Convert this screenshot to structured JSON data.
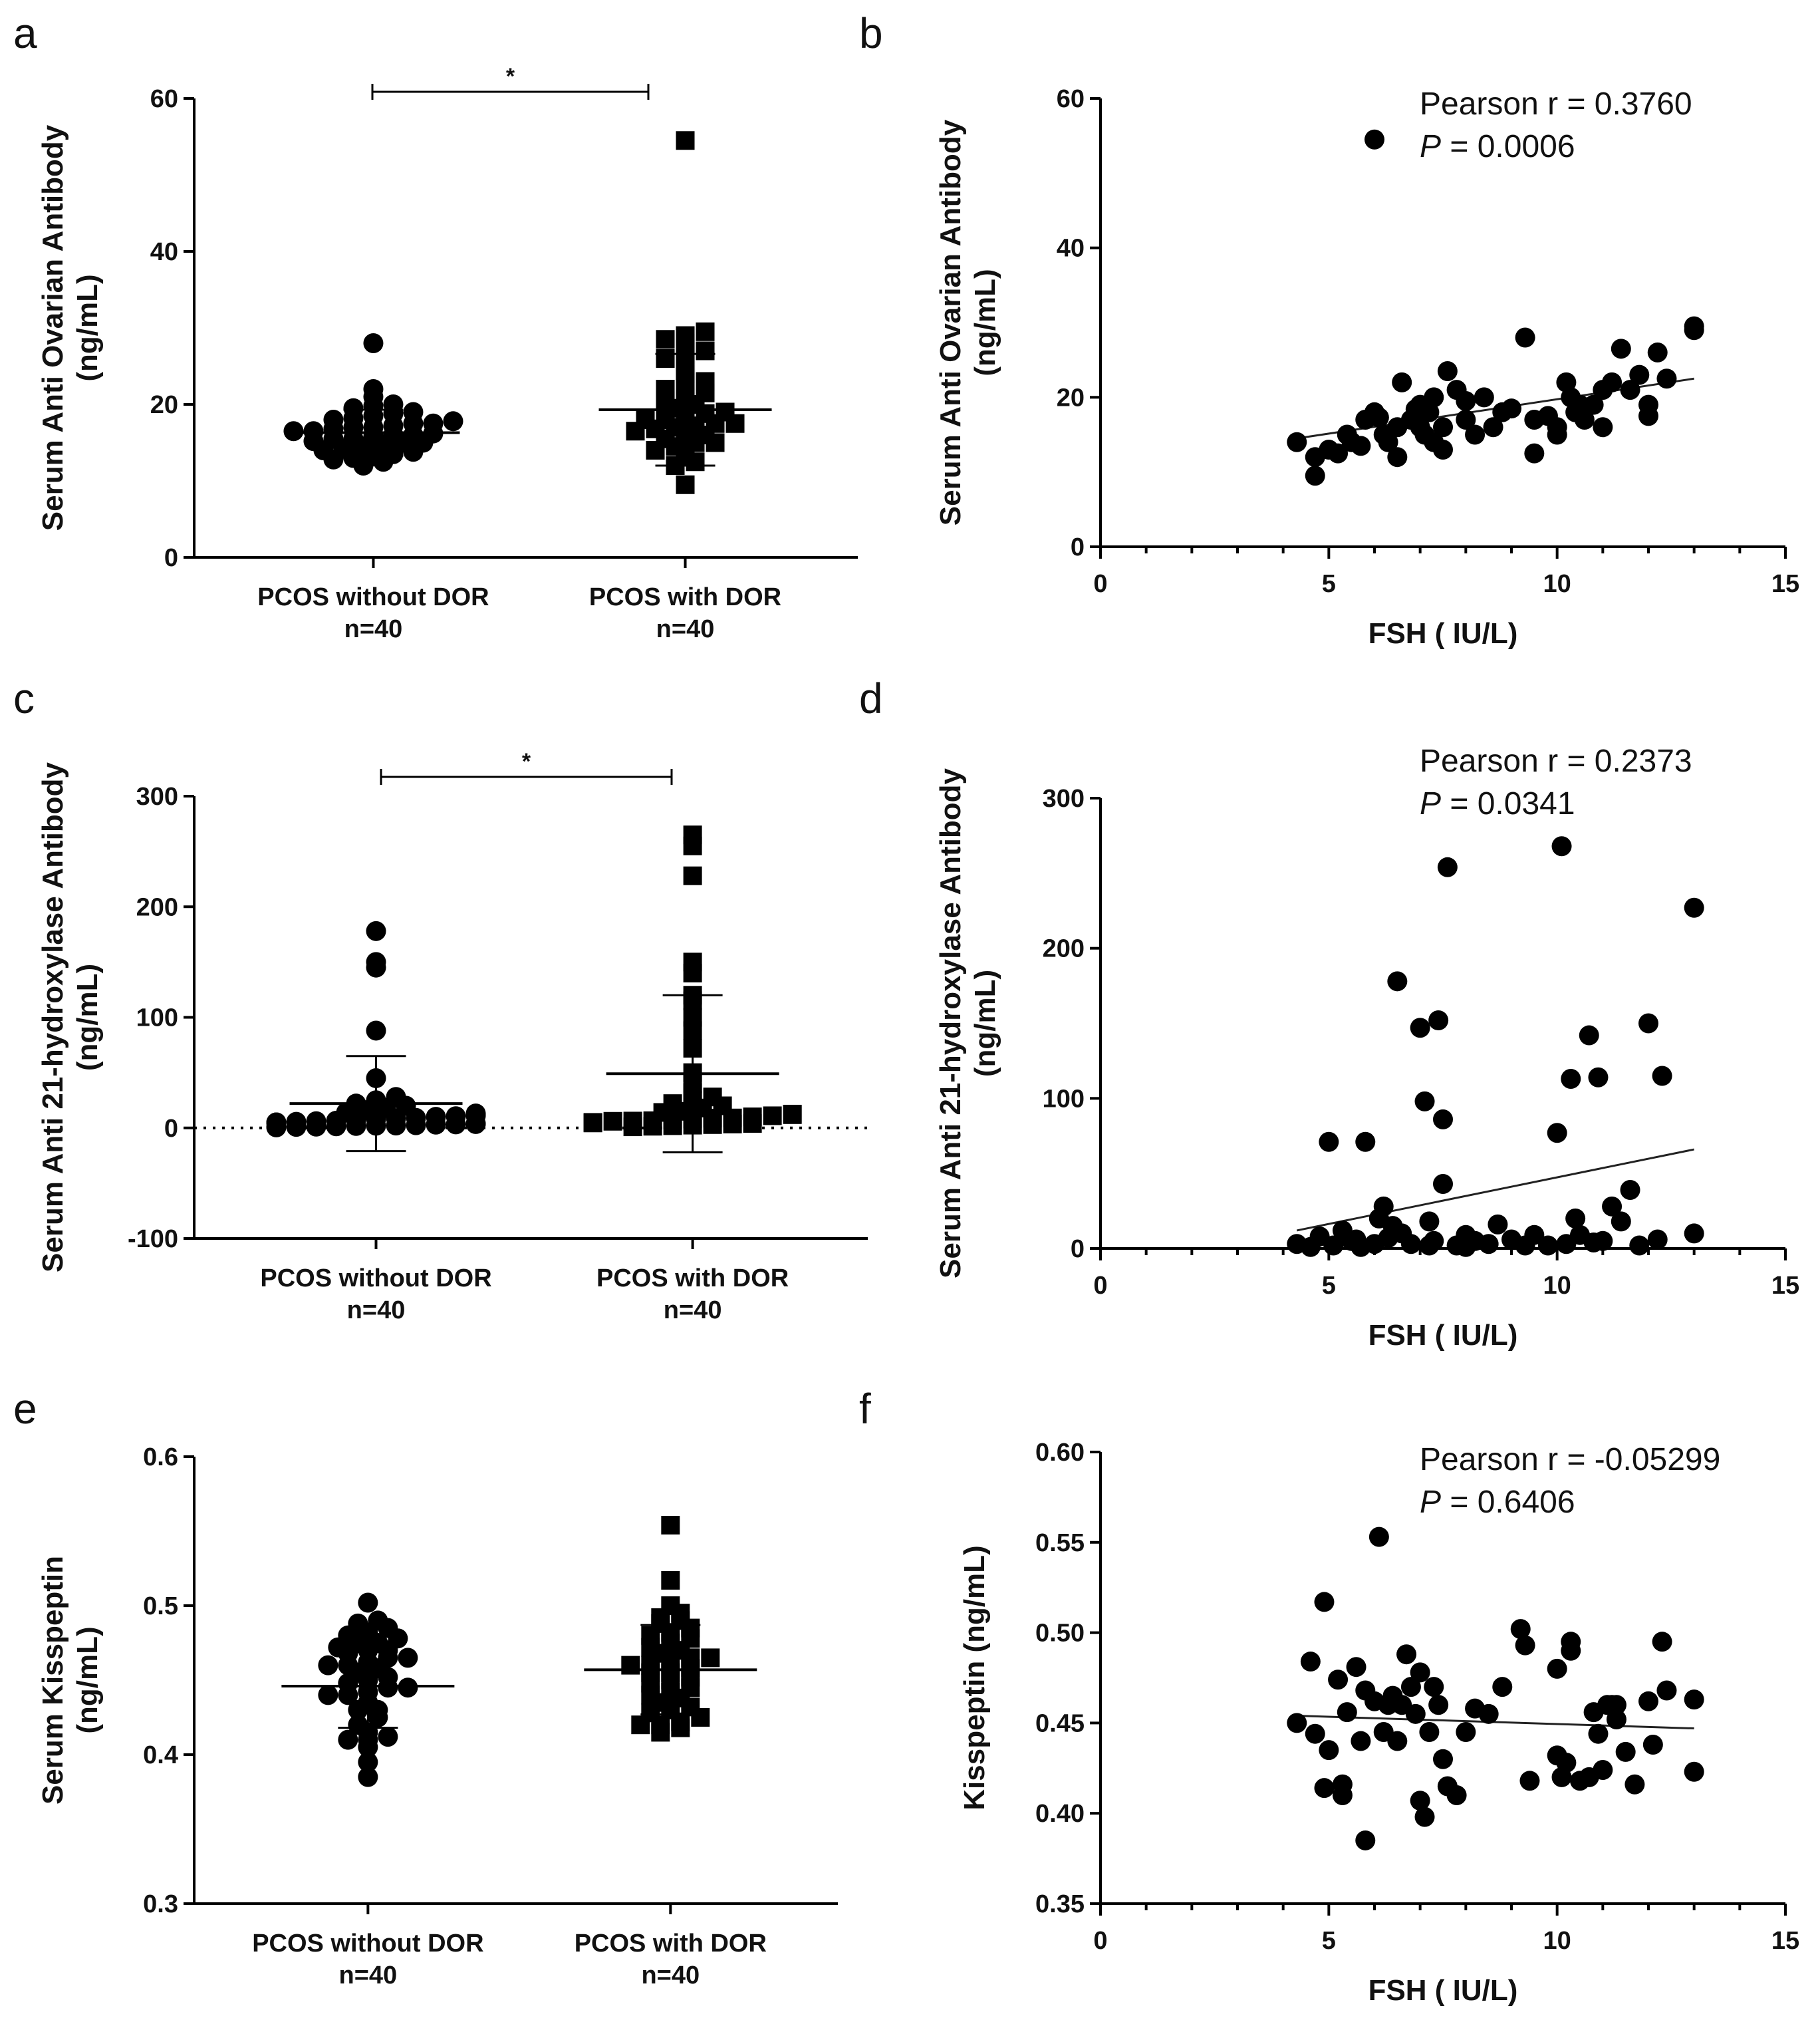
{
  "figure": {
    "panels": [
      {
        "id": "a",
        "letter": "a"
      },
      {
        "id": "b",
        "letter": "b"
      },
      {
        "id": "c",
        "letter": "c"
      },
      {
        "id": "d",
        "letter": "d"
      },
      {
        "id": "e",
        "letter": "e"
      },
      {
        "id": "f",
        "letter": "f"
      }
    ]
  },
  "chart_data": [
    {
      "panel": "a",
      "type": "scatter",
      "subtype": "dot-plot",
      "ylabel": [
        "Serum Anti Ovarian Antibody",
        "(ng/mL)"
      ],
      "ylim": [
        0,
        60
      ],
      "yticks": [
        0,
        20,
        40,
        60
      ],
      "categories": [
        {
          "label": "PCOS without DOR",
          "n": "n=40",
          "marker": "circle",
          "values": [
            12,
            12.5,
            12.8,
            13,
            13.2,
            13.5,
            13.8,
            14,
            14.2,
            14.5,
            14.8,
            15,
            15,
            15.2,
            15.5,
            15.5,
            15.8,
            16,
            16,
            16.2,
            16.5,
            16.5,
            16.8,
            17,
            17,
            17.2,
            17.5,
            17.5,
            17.8,
            18,
            18.2,
            18.5,
            18.8,
            19,
            19.5,
            19.8,
            20,
            21,
            22,
            28
          ],
          "mean": 16.3,
          "sd": 3.0
        },
        {
          "label": "PCOS with DOR",
          "n": "n=40",
          "marker": "square",
          "values": [
            9.5,
            12,
            12.5,
            13.5,
            14,
            14.5,
            15,
            15,
            15.5,
            15.8,
            16,
            16.5,
            16.8,
            17,
            17.5,
            17.5,
            18,
            18,
            18.5,
            18.8,
            19,
            19.5,
            20,
            20.5,
            21,
            21.5,
            22,
            22.5,
            23,
            24,
            25,
            26,
            26.5,
            27,
            28,
            28.5,
            29,
            29.5,
            17.2,
            54.5
          ],
          "mean": 19.3,
          "sd": 7.3
        }
      ],
      "significance": "*"
    },
    {
      "panel": "b",
      "type": "scatter",
      "xlabel": "FSH ( IU/L)",
      "ylabel": [
        "Serum Anti Ovarian Antibody",
        "(ng/mL)"
      ],
      "xlim": [
        0,
        15
      ],
      "ylim": [
        0,
        60
      ],
      "xticks": [
        0,
        5,
        10,
        15
      ],
      "yticks": [
        0,
        20,
        40,
        60
      ],
      "stats": {
        "r_label": "Pearson r = 0.3760",
        "p_italic": "P",
        "p_rest": " = 0.0006"
      },
      "fit": {
        "x": [
          4.3,
          13.0
        ],
        "y": [
          14.5,
          22.5
        ]
      },
      "points": [
        [
          6.0,
          54.5
        ],
        [
          4.3,
          14
        ],
        [
          4.7,
          12
        ],
        [
          4.7,
          9.5
        ],
        [
          5.0,
          13
        ],
        [
          5.2,
          12.5
        ],
        [
          5.4,
          15
        ],
        [
          5.5,
          14
        ],
        [
          5.7,
          13.5
        ],
        [
          5.8,
          17
        ],
        [
          6.0,
          18
        ],
        [
          6.2,
          15
        ],
        [
          6.3,
          14
        ],
        [
          6.5,
          16
        ],
        [
          6.5,
          12
        ],
        [
          6.6,
          22
        ],
        [
          6.8,
          17
        ],
        [
          7.0,
          16
        ],
        [
          7.0,
          19
        ],
        [
          7.1,
          15
        ],
        [
          7.2,
          18
        ],
        [
          7.3,
          20
        ],
        [
          7.3,
          14
        ],
        [
          7.5,
          16
        ],
        [
          7.5,
          13
        ],
        [
          7.6,
          23.5
        ],
        [
          7.8,
          21
        ],
        [
          8.0,
          17
        ],
        [
          8.0,
          19.5
        ],
        [
          8.2,
          15
        ],
        [
          8.4,
          20
        ],
        [
          8.6,
          16
        ],
        [
          8.8,
          18
        ],
        [
          9.0,
          18.5
        ],
        [
          9.3,
          28
        ],
        [
          9.5,
          17
        ],
        [
          9.5,
          12.5
        ],
        [
          10.0,
          16
        ],
        [
          10.0,
          15
        ],
        [
          10.2,
          22
        ],
        [
          10.3,
          20
        ],
        [
          10.4,
          18
        ],
        [
          10.6,
          17
        ],
        [
          10.8,
          19
        ],
        [
          11.0,
          16
        ],
        [
          11.0,
          21
        ],
        [
          11.2,
          22
        ],
        [
          11.4,
          26.5
        ],
        [
          11.6,
          21
        ],
        [
          11.8,
          23
        ],
        [
          12.0,
          19
        ],
        [
          12.0,
          17.5
        ],
        [
          12.2,
          26
        ],
        [
          12.4,
          22.5
        ],
        [
          13.0,
          29
        ],
        [
          13.0,
          29.5
        ],
        [
          9.8,
          17.5
        ],
        [
          10.5,
          19
        ],
        [
          6.1,
          17.3
        ],
        [
          6.9,
          18.4
        ]
      ]
    },
    {
      "panel": "c",
      "type": "scatter",
      "subtype": "dot-plot",
      "ylabel": [
        "Serum Anti 21-hydroxylase Antibody",
        "(ng/mL)"
      ],
      "ylim": [
        -100,
        300
      ],
      "yticks": [
        -100,
        0,
        100,
        200,
        300
      ],
      "categories": [
        {
          "label": "PCOS without DOR",
          "n": "n=40",
          "marker": "circle",
          "values": [
            0.5,
            0.8,
            1,
            1.2,
            1.5,
            1.8,
            2,
            2.2,
            2.5,
            3,
            3.2,
            3.5,
            4,
            4.5,
            5,
            5,
            5.5,
            6,
            6.5,
            7,
            8,
            8.5,
            9,
            10,
            10.5,
            11,
            12,
            13,
            14,
            16,
            18,
            20,
            22,
            25,
            28,
            45,
            88,
            145,
            150,
            178
          ],
          "mean": 22,
          "sd": 43
        },
        {
          "label": "PCOS with DOR",
          "n": "n=40",
          "marker": "square",
          "values": [
            1,
            1.5,
            2,
            2.5,
            3,
            3.5,
            4,
            4.5,
            5,
            6,
            6.5,
            7,
            8,
            9,
            10,
            11,
            12,
            14,
            15,
            18,
            20,
            22,
            25,
            28,
            32,
            40,
            50,
            72,
            88,
            100,
            115,
            120,
            140,
            150,
            228,
            255,
            265,
            6.2,
            8.8,
            12.5
          ],
          "mean": 49,
          "sd": 71
        },
        {
          "_comment": "zero reference line dotted"
        }
      ],
      "significance": "*"
    },
    {
      "panel": "d",
      "type": "scatter",
      "xlabel": "FSH ( IU/L)",
      "ylabel": [
        "Serum Anti 21-hydroxylase Antibody",
        "(ng/mL)"
      ],
      "xlim": [
        0,
        15
      ],
      "ylim": [
        0,
        300
      ],
      "xticks": [
        0,
        5,
        10,
        15
      ],
      "yticks": [
        0,
        100,
        200,
        300
      ],
      "stats": {
        "r_label": "Pearson r = 0.2373",
        "p_italic": "P",
        "p_rest": " = 0.0341"
      },
      "fit": {
        "x": [
          4.3,
          13.0
        ],
        "y": [
          12,
          66
        ]
      },
      "points": [
        [
          4.3,
          3
        ],
        [
          4.6,
          1
        ],
        [
          4.8,
          8
        ],
        [
          5.0,
          71
        ],
        [
          5.1,
          2
        ],
        [
          5.3,
          12
        ],
        [
          5.5,
          5
        ],
        [
          5.7,
          1
        ],
        [
          5.8,
          71
        ],
        [
          6.0,
          3
        ],
        [
          6.1,
          20
        ],
        [
          6.2,
          28
        ],
        [
          6.3,
          7
        ],
        [
          6.5,
          178
        ],
        [
          6.6,
          10
        ],
        [
          6.8,
          3
        ],
        [
          7.0,
          147
        ],
        [
          7.1,
          98
        ],
        [
          7.2,
          18
        ],
        [
          7.3,
          5
        ],
        [
          7.4,
          152
        ],
        [
          7.5,
          43
        ],
        [
          7.5,
          86
        ],
        [
          7.6,
          254
        ],
        [
          7.8,
          2
        ],
        [
          8.0,
          9
        ],
        [
          8.2,
          5
        ],
        [
          8.5,
          3
        ],
        [
          8.7,
          16
        ],
        [
          9.0,
          6
        ],
        [
          9.3,
          2
        ],
        [
          9.5,
          9
        ],
        [
          10.0,
          77
        ],
        [
          10.1,
          268
        ],
        [
          10.2,
          3
        ],
        [
          10.3,
          113
        ],
        [
          10.4,
          20
        ],
        [
          10.5,
          9
        ],
        [
          10.7,
          142
        ],
        [
          10.9,
          114
        ],
        [
          11.0,
          5
        ],
        [
          11.2,
          28
        ],
        [
          11.4,
          18
        ],
        [
          11.6,
          39
        ],
        [
          11.8,
          2
        ],
        [
          12.0,
          150
        ],
        [
          12.2,
          6
        ],
        [
          12.3,
          115
        ],
        [
          13.0,
          227
        ],
        [
          13.0,
          10
        ],
        [
          8.0,
          1
        ],
        [
          9.8,
          2
        ],
        [
          10.8,
          4
        ],
        [
          7.2,
          2
        ],
        [
          6.4,
          15
        ],
        [
          5.6,
          6
        ]
      ]
    },
    {
      "panel": "e",
      "type": "scatter",
      "subtype": "dot-plot",
      "ylabel": [
        "Serum Kisspeptin",
        "(ng/mL)"
      ],
      "ylim": [
        0.3,
        0.6
      ],
      "yticks": [
        "0.3",
        "0.4",
        "0.5",
        "0.6"
      ],
      "yticks_values": [
        0.3,
        0.4,
        0.5,
        0.6
      ],
      "categories": [
        {
          "label": "PCOS without DOR",
          "n": "n=40",
          "marker": "circle",
          "values": [
            0.385,
            0.395,
            0.405,
            0.41,
            0.41,
            0.412,
            0.415,
            0.42,
            0.425,
            0.43,
            0.43,
            0.435,
            0.44,
            0.44,
            0.442,
            0.445,
            0.445,
            0.448,
            0.45,
            0.452,
            0.455,
            0.458,
            0.46,
            0.46,
            0.462,
            0.465,
            0.465,
            0.468,
            0.47,
            0.47,
            0.472,
            0.475,
            0.475,
            0.478,
            0.48,
            0.482,
            0.485,
            0.488,
            0.49,
            0.502
          ],
          "mean": 0.446,
          "sd": 0.028
        },
        {
          "label": "PCOS with DOR",
          "n": "n=40",
          "marker": "square",
          "values": [
            0.415,
            0.418,
            0.42,
            0.42,
            0.422,
            0.425,
            0.428,
            0.43,
            0.432,
            0.435,
            0.438,
            0.44,
            0.442,
            0.445,
            0.448,
            0.45,
            0.452,
            0.455,
            0.455,
            0.458,
            0.46,
            0.46,
            0.462,
            0.465,
            0.465,
            0.468,
            0.47,
            0.472,
            0.475,
            0.478,
            0.48,
            0.482,
            0.485,
            0.488,
            0.49,
            0.492,
            0.495,
            0.5,
            0.517,
            0.554
          ],
          "mean": 0.457,
          "sd": 0.03
        }
      ]
    },
    {
      "panel": "f",
      "type": "scatter",
      "xlabel": "FSH ( IU/L)",
      "ylabel": [
        "Kisspeptin (ng/mL)"
      ],
      "xlim": [
        0,
        15
      ],
      "ylim": [
        0.35,
        0.6
      ],
      "xticks": [
        0,
        5,
        10,
        15
      ],
      "yticks": [
        "0.35",
        "0.40",
        "0.45",
        "0.50",
        "0.55",
        "0.60"
      ],
      "yticks_values": [
        0.35,
        0.4,
        0.45,
        0.5,
        0.55,
        0.6
      ],
      "stats": {
        "r_label": "Pearson r = -0.05299",
        "p_italic": "P",
        "p_rest": " = 0.6406"
      },
      "fit": {
        "x": [
          4.3,
          13.0
        ],
        "y": [
          0.454,
          0.447
        ]
      },
      "points": [
        [
          4.3,
          0.45
        ],
        [
          4.6,
          0.484
        ],
        [
          4.7,
          0.444
        ],
        [
          4.9,
          0.414
        ],
        [
          4.9,
          0.517
        ],
        [
          5.0,
          0.435
        ],
        [
          5.2,
          0.474
        ],
        [
          5.3,
          0.416
        ],
        [
          5.3,
          0.41
        ],
        [
          5.4,
          0.456
        ],
        [
          5.6,
          0.481
        ],
        [
          5.7,
          0.44
        ],
        [
          5.8,
          0.468
        ],
        [
          5.8,
          0.385
        ],
        [
          6.0,
          0.462
        ],
        [
          6.1,
          0.553
        ],
        [
          6.2,
          0.445
        ],
        [
          6.3,
          0.46
        ],
        [
          6.4,
          0.465
        ],
        [
          6.5,
          0.44
        ],
        [
          6.7,
          0.488
        ],
        [
          6.8,
          0.47
        ],
        [
          6.9,
          0.455
        ],
        [
          7.0,
          0.478
        ],
        [
          7.0,
          0.407
        ],
        [
          7.1,
          0.398
        ],
        [
          7.2,
          0.445
        ],
        [
          7.3,
          0.47
        ],
        [
          7.4,
          0.46
        ],
        [
          7.5,
          0.43
        ],
        [
          7.6,
          0.415
        ],
        [
          7.8,
          0.41
        ],
        [
          8.0,
          0.445
        ],
        [
          8.2,
          0.458
        ],
        [
          8.5,
          0.455
        ],
        [
          8.8,
          0.47
        ],
        [
          9.2,
          0.502
        ],
        [
          9.3,
          0.493
        ],
        [
          9.4,
          0.418
        ],
        [
          10.0,
          0.48
        ],
        [
          10.0,
          0.432
        ],
        [
          10.1,
          0.42
        ],
        [
          10.2,
          0.428
        ],
        [
          10.3,
          0.49
        ],
        [
          10.3,
          0.495
        ],
        [
          10.5,
          0.418
        ],
        [
          10.7,
          0.42
        ],
        [
          10.8,
          0.456
        ],
        [
          10.9,
          0.444
        ],
        [
          11.0,
          0.424
        ],
        [
          11.1,
          0.46
        ],
        [
          11.3,
          0.452
        ],
        [
          11.3,
          0.46
        ],
        [
          11.5,
          0.434
        ],
        [
          11.7,
          0.416
        ],
        [
          12.0,
          0.462
        ],
        [
          12.1,
          0.438
        ],
        [
          12.3,
          0.495
        ],
        [
          12.4,
          0.468
        ],
        [
          13.0,
          0.423
        ],
        [
          13.0,
          0.463
        ],
        [
          11.2,
          0.46
        ],
        [
          6.6,
          0.46
        ]
      ]
    }
  ]
}
